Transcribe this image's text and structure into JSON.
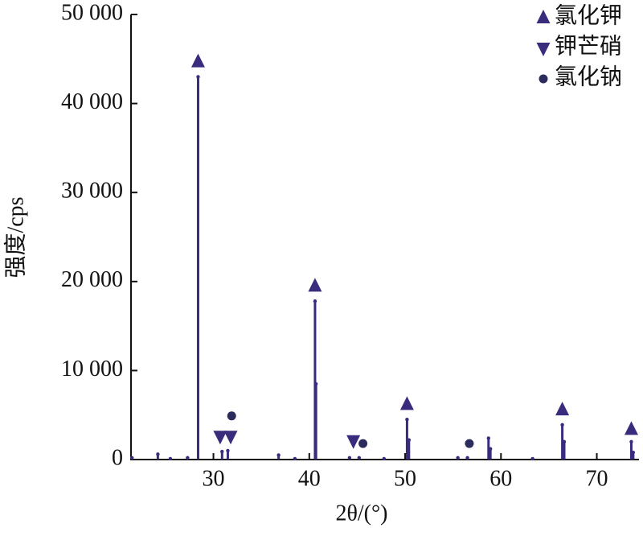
{
  "chart_data": {
    "type": "stick",
    "x_label": "2θ/(°)",
    "y_label": "强度/cps",
    "color": "#3b2b7c",
    "xlim": [
      21.4,
      74.4
    ],
    "xticks": [
      30,
      40,
      50,
      60,
      70
    ],
    "ylim": [
      0,
      50000
    ],
    "yticks": [
      0,
      {
        "value": 10000,
        "label": "10 000"
      },
      {
        "value": 20000,
        "label": "20 000"
      },
      {
        "value": 30000,
        "label": "30 000"
      },
      {
        "value": 40000,
        "label": "40 000"
      },
      {
        "value": 50000,
        "label": "50 000"
      }
    ],
    "x": [
      21.5,
      24.2,
      25.5,
      27.3,
      28.4,
      30.9,
      31.5,
      36.8,
      38.5,
      40.6,
      40.7,
      44.2,
      45.2,
      47.8,
      50.2,
      50.4,
      55.5,
      56.5,
      58.7,
      58.9,
      63.3,
      66.4,
      66.6,
      73.6,
      73.8
    ],
    "values": [
      200,
      600,
      100,
      200,
      43000,
      900,
      1000,
      500,
      100,
      17800,
      8500,
      200,
      200,
      100,
      4500,
      2200,
      200,
      200,
      2400,
      1200,
      100,
      3900,
      2000,
      2000,
      800
    ],
    "series": [
      {
        "name": "氯化钾",
        "color": "#3b2b7c",
        "marker": "triangle-up",
        "x": [
          28.4,
          40.6,
          50.2,
          66.4,
          73.6
        ],
        "values": [
          44700,
          19500,
          6200,
          5600,
          3400
        ]
      },
      {
        "name": "钾芒硝",
        "color": "#3b2b7c",
        "marker": "triangle-down",
        "x": [
          30.7,
          31.8,
          44.6
        ],
        "values": [
          2600,
          2600,
          2100
        ]
      },
      {
        "name": "氯化钠",
        "color": "#2b2b5c",
        "marker": "circle",
        "x": [
          31.9,
          45.6,
          56.7
        ],
        "values": [
          4900,
          1800,
          1800
        ]
      }
    ],
    "legend": "upper right"
  }
}
